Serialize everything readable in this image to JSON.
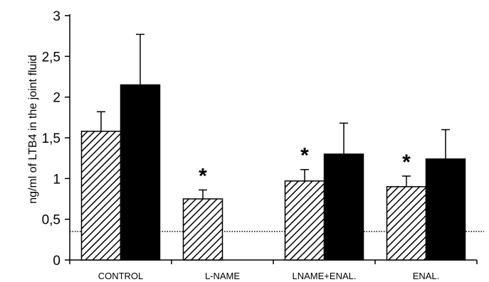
{
  "chart_data": {
    "type": "bar",
    "title": "",
    "xlabel": "",
    "ylabel": "ng/ml of LTB4 in the joint fluid",
    "ylim": [
      0,
      3
    ],
    "yticks": [
      "0",
      "0,5",
      "1",
      "1,5",
      "2",
      "2,5",
      "3"
    ],
    "categories": [
      "CONTROL",
      "L-NAME",
      "LNAME+ENAL.",
      "ENAL."
    ],
    "series": [
      {
        "pattern": "hatched",
        "values": [
          1.58,
          0.75,
          0.97,
          0.9
        ],
        "errors": [
          0.24,
          0.11,
          0.14,
          0.13
        ],
        "annotations": [
          "",
          "*",
          "*",
          "*"
        ]
      },
      {
        "color": "#000000",
        "values": [
          2.15,
          null,
          1.3,
          1.24
        ],
        "errors": [
          0.62,
          null,
          0.38,
          0.36
        ],
        "annotations": [
          "",
          "",
          "",
          ""
        ]
      }
    ],
    "reference_line": {
      "value": 0.35,
      "style": "dotted"
    },
    "grid": false,
    "legend": "none"
  }
}
